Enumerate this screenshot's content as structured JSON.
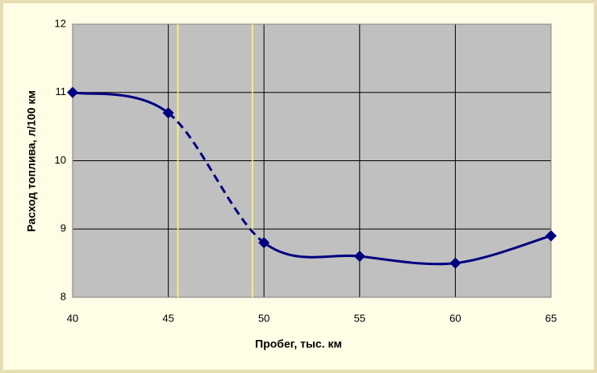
{
  "chart_data": {
    "type": "line",
    "x_label": "Пробег, тыс. км",
    "y_label": "Расход топлива, л/100 км",
    "x": [
      40,
      45,
      50,
      55,
      60,
      65
    ],
    "series": [
      {
        "color": "#000080",
        "values": [
          11,
          10.7,
          8.8,
          8.6,
          8.5,
          8.9
        ]
      }
    ],
    "dashed_between": [
      45,
      50
    ],
    "vlines": [
      45.5,
      49.4
    ],
    "vline_color": "#ffff66",
    "xlim": [
      40,
      65
    ],
    "xticks": [
      40,
      45,
      50,
      55,
      60,
      65
    ],
    "ylim": [
      8,
      12
    ],
    "yticks": [
      8,
      9,
      10,
      11,
      12
    ],
    "grid": true,
    "plot_background": "#c0c0c0",
    "grid_color": "#000000"
  }
}
